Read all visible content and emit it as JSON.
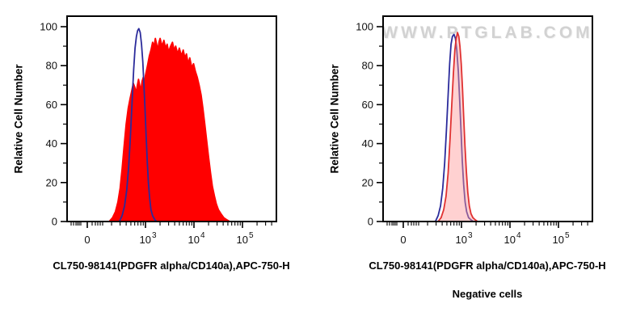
{
  "chart_data": {
    "type": "area",
    "chart_kind": "flow cytometry histogram overlay, two panels",
    "ylabel": "Relative Cell Number",
    "ylim": [
      0,
      105
    ],
    "grid": false,
    "legend": false,
    "y_axis": {
      "major_ticks": [
        0,
        20,
        40,
        60,
        80,
        100
      ],
      "minor_ticks": [
        10,
        30,
        50,
        70,
        90
      ]
    },
    "x_axis": {
      "scale": "biexponential-log",
      "max_value": 500000,
      "major_ticks": [
        {
          "label": "0",
          "value": 0
        },
        {
          "label": "10^3",
          "base": "10",
          "exp": "3",
          "value": 1000
        },
        {
          "label": "10^4",
          "base": "10",
          "exp": "4",
          "value": 10000
        },
        {
          "label": "10^5",
          "base": "10",
          "exp": "5",
          "value": 100000
        }
      ]
    },
    "panels": [
      {
        "id": "stained",
        "xlabel": "CL750-98141(PDGFR alpha/CD140a),APC-750-H",
        "sublabel": "",
        "watermark": "",
        "series": [
          {
            "name": "red-filled-histogram",
            "color": "#ff0000",
            "fill": "#ff0000",
            "fill_opacity": 1,
            "peak_x": 2000,
            "peak_y": 94,
            "points": [
              [
                180,
                0
              ],
              [
                210,
                2
              ],
              [
                240,
                5
              ],
              [
                270,
                10
              ],
              [
                300,
                17
              ],
              [
                330,
                27
              ],
              [
                360,
                38
              ],
              [
                400,
                50
              ],
              [
                440,
                58
              ],
              [
                480,
                63
              ],
              [
                520,
                67
              ],
              [
                560,
                71
              ],
              [
                600,
                69
              ],
              [
                640,
                66
              ],
              [
                680,
                70
              ],
              [
                720,
                73
              ],
              [
                760,
                70
              ],
              [
                800,
                67
              ],
              [
                850,
                72
              ],
              [
                900,
                74
              ],
              [
                950,
                71
              ],
              [
                1000,
                75
              ],
              [
                1100,
                80
              ],
              [
                1200,
                85
              ],
              [
                1300,
                88
              ],
              [
                1400,
                92
              ],
              [
                1500,
                90
              ],
              [
                1600,
                94
              ],
              [
                1700,
                91
              ],
              [
                1800,
                88
              ],
              [
                1900,
                92
              ],
              [
                2000,
                94
              ],
              [
                2200,
                90
              ],
              [
                2400,
                93
              ],
              [
                2600,
                89
              ],
              [
                2800,
                91
              ],
              [
                3000,
                87
              ],
              [
                3300,
                90
              ],
              [
                3600,
                92
              ],
              [
                3900,
                88
              ],
              [
                4200,
                90
              ],
              [
                4600,
                86
              ],
              [
                5000,
                89
              ],
              [
                5500,
                85
              ],
              [
                6000,
                88
              ],
              [
                6500,
                84
              ],
              [
                7000,
                86
              ],
              [
                7600,
                81
              ],
              [
                8200,
                84
              ],
              [
                9000,
                79
              ],
              [
                9800,
                81
              ],
              [
                10700,
                77
              ],
              [
                11700,
                74
              ],
              [
                12800,
                70
              ],
              [
                14000,
                65
              ],
              [
                15300,
                58
              ],
              [
                16700,
                50
              ],
              [
                18200,
                42
              ],
              [
                20000,
                33
              ],
              [
                22000,
                25
              ],
              [
                24000,
                18
              ],
              [
                26500,
                13
              ],
              [
                29000,
                9
              ],
              [
                32000,
                6
              ],
              [
                36000,
                4
              ],
              [
                41000,
                2
              ],
              [
                47000,
                1
              ],
              [
                55000,
                0
              ]
            ]
          },
          {
            "name": "blue-outline-histogram",
            "color": "#2b2b9b",
            "fill": null,
            "fill_opacity": 0,
            "peak_x": 730,
            "peak_y": 99,
            "points": [
              [
                290,
                0
              ],
              [
                330,
                3
              ],
              [
                370,
                8
              ],
              [
                410,
                16
              ],
              [
                450,
                28
              ],
              [
                490,
                44
              ],
              [
                530,
                62
              ],
              [
                570,
                78
              ],
              [
                610,
                89
              ],
              [
                650,
                95
              ],
              [
                690,
                98
              ],
              [
                730,
                99
              ],
              [
                780,
                97
              ],
              [
                830,
                91
              ],
              [
                880,
                82
              ],
              [
                930,
                70
              ],
              [
                980,
                57
              ],
              [
                1030,
                44
              ],
              [
                1090,
                31
              ],
              [
                1150,
                20
              ],
              [
                1220,
                12
              ],
              [
                1300,
                6
              ],
              [
                1400,
                3
              ],
              [
                1550,
                1
              ],
              [
                1700,
                0
              ]
            ]
          }
        ]
      },
      {
        "id": "negative-cells",
        "xlabel": "CL750-98141(PDGFR alpha/CD140a),APC-750-H",
        "sublabel": "Negative cells",
        "watermark": "WWW.PTGLAB.COM",
        "series": [
          {
            "name": "blue-outline-histogram",
            "color": "#2b2b9b",
            "fill": null,
            "fill_opacity": 0,
            "peak_x": 700,
            "peak_y": 96,
            "points": [
              [
                290,
                0
              ],
              [
                330,
                3
              ],
              [
                370,
                8
              ],
              [
                410,
                17
              ],
              [
                450,
                30
              ],
              [
                490,
                47
              ],
              [
                530,
                65
              ],
              [
                570,
                81
              ],
              [
                610,
                91
              ],
              [
                650,
                95
              ],
              [
                700,
                96
              ],
              [
                750,
                94
              ],
              [
                800,
                88
              ],
              [
                860,
                77
              ],
              [
                920,
                62
              ],
              [
                980,
                46
              ],
              [
                1040,
                31
              ],
              [
                1110,
                19
              ],
              [
                1190,
                10
              ],
              [
                1280,
                5
              ],
              [
                1400,
                2
              ],
              [
                1550,
                1
              ],
              [
                1750,
                0
              ]
            ]
          },
          {
            "name": "red-outline-pink-fill-histogram",
            "color": "#e03131",
            "fill": "#ff9999",
            "fill_opacity": 0.45,
            "peak_x": 830,
            "peak_y": 97,
            "points": [
              [
                330,
                0
              ],
              [
                380,
                2
              ],
              [
                430,
                6
              ],
              [
                480,
                13
              ],
              [
                530,
                25
              ],
              [
                580,
                42
              ],
              [
                630,
                60
              ],
              [
                680,
                76
              ],
              [
                730,
                88
              ],
              [
                780,
                94
              ],
              [
                830,
                97
              ],
              [
                880,
                95
              ],
              [
                930,
                90
              ],
              [
                990,
                81
              ],
              [
                1050,
                68
              ],
              [
                1110,
                54
              ],
              [
                1180,
                39
              ],
              [
                1260,
                26
              ],
              [
                1350,
                15
              ],
              [
                1450,
                8
              ],
              [
                1570,
                4
              ],
              [
                1720,
                2
              ],
              [
                1900,
                1
              ],
              [
                2150,
                0
              ]
            ]
          }
        ]
      }
    ]
  }
}
